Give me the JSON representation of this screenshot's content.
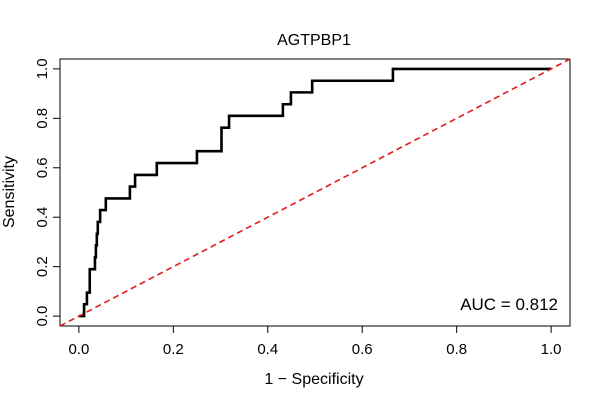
{
  "chart_data": {
    "type": "line",
    "title": "AGTPBP1",
    "xlabel": "1 − Specificity",
    "ylabel": "Sensitivity",
    "xlim": [
      -0.04,
      1.04
    ],
    "ylim": [
      -0.04,
      1.04
    ],
    "x_ticks": [
      0.0,
      0.2,
      0.4,
      0.6,
      0.8,
      1.0
    ],
    "x_tick_labels": [
      "0.0",
      "0.2",
      "0.4",
      "0.6",
      "0.8",
      "1.0"
    ],
    "y_ticks": [
      0.0,
      0.2,
      0.4,
      0.6,
      0.8,
      1.0
    ],
    "y_tick_labels": [
      "0.0",
      "0.2",
      "0.4",
      "0.6",
      "0.8",
      "1.0"
    ],
    "grid": false,
    "annotation": "AUC = 0.812",
    "series": [
      {
        "color": "#000000",
        "style": "solid",
        "x": [
          0.0,
          0.011,
          0.011,
          0.017,
          0.017,
          0.023,
          0.023,
          0.034,
          0.034,
          0.036,
          0.036,
          0.038,
          0.038,
          0.04,
          0.04,
          0.045,
          0.045,
          0.057,
          0.057,
          0.108,
          0.108,
          0.119,
          0.119,
          0.165,
          0.165,
          0.25,
          0.25,
          0.302,
          0.302,
          0.318,
          0.318,
          0.432,
          0.432,
          0.449,
          0.449,
          0.494,
          0.494,
          0.665,
          0.665,
          1.0
        ],
        "y": [
          0.0,
          0.0,
          0.048,
          0.048,
          0.095,
          0.095,
          0.19,
          0.19,
          0.238,
          0.238,
          0.286,
          0.286,
          0.333,
          0.333,
          0.381,
          0.381,
          0.429,
          0.429,
          0.476,
          0.476,
          0.524,
          0.524,
          0.571,
          0.571,
          0.619,
          0.619,
          0.667,
          0.667,
          0.762,
          0.762,
          0.81,
          0.81,
          0.857,
          0.857,
          0.905,
          0.905,
          0.952,
          0.952,
          1.0,
          1.0
        ]
      },
      {
        "color": "#e31a1c",
        "style": "dashed",
        "x": [
          -0.04,
          1.04
        ],
        "y": [
          -0.04,
          1.04
        ]
      }
    ]
  }
}
